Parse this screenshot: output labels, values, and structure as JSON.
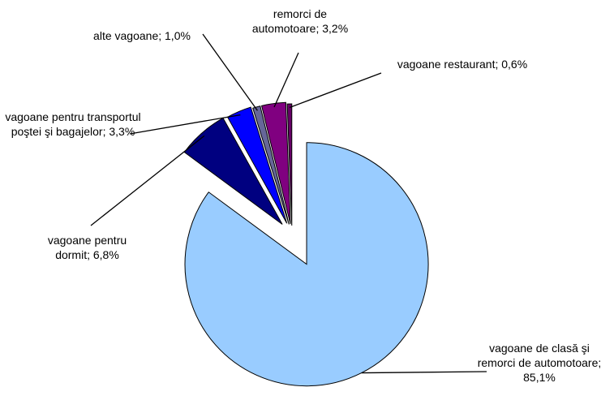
{
  "chart_data": {
    "type": "pie",
    "categories": [
      "vagoane de clasă şi remorci de automotoare;",
      "vagoane pentru dormit;",
      "vagoane pentru transportul poştei şi bagajelor;",
      "alte vagoane;",
      "remorci de automotoare;",
      "vagoane restaurant;"
    ],
    "values": [
      85.1,
      6.8,
      3.3,
      1.0,
      3.2,
      0.6
    ],
    "value_labels": [
      "85,1%",
      "6,8%",
      "3,3%",
      "1,0%",
      "3,2%",
      "0,6%"
    ],
    "colors": [
      "#99ccff",
      "#000080",
      "#0000ff",
      "#666699",
      "#800080",
      "#660066"
    ]
  }
}
